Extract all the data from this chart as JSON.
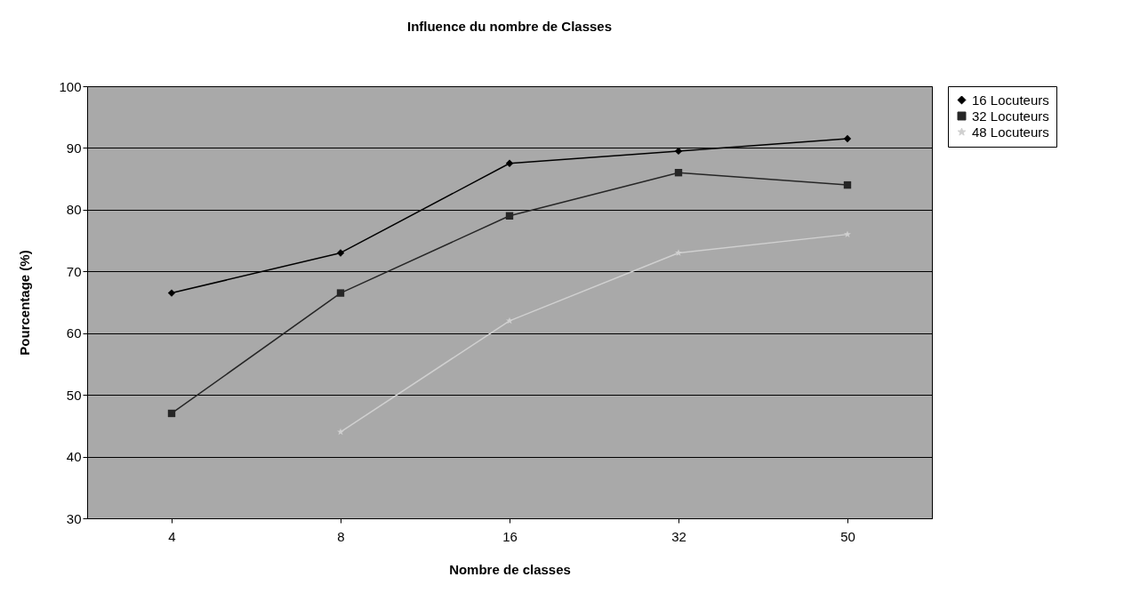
{
  "chart_data": {
    "type": "line",
    "title": "Influence du nombre de Classes",
    "xlabel": "Nombre de classes",
    "ylabel": "Pourcentage (%)",
    "categories": [
      "4",
      "8",
      "16",
      "32",
      "50"
    ],
    "series": [
      {
        "name": "16 Locuteurs",
        "color": "#000000",
        "marker": "diamond",
        "values": [
          66.5,
          73,
          87.5,
          89.5,
          91.5
        ]
      },
      {
        "name": "32 Locuteurs",
        "color": "#262626",
        "marker": "square",
        "values": [
          47,
          66.5,
          79,
          86,
          84
        ]
      },
      {
        "name": "48 Locuteurs",
        "color": "#d0d0d0",
        "marker": "star",
        "values": [
          null,
          44,
          62,
          73,
          76
        ]
      }
    ],
    "ylim": [
      30,
      100
    ],
    "yticks": [
      30,
      40,
      50,
      60,
      70,
      80,
      90,
      100
    ],
    "grid": "y",
    "legend": "right"
  }
}
